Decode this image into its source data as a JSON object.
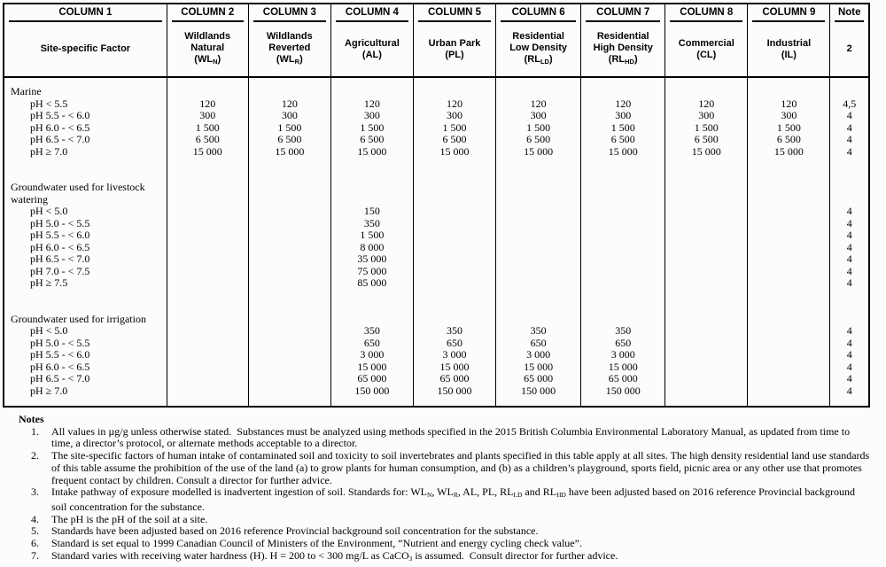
{
  "table": {
    "header_row1": [
      "COLUMN 1",
      "COLUMN 2",
      "COLUMN 3",
      "COLUMN 4",
      "COLUMN 5",
      "COLUMN 6",
      "COLUMN 7",
      "COLUMN 8",
      "COLUMN 9",
      "Note"
    ],
    "header_row2": [
      {
        "lines": [
          "Site-specific Factor"
        ],
        "paren": []
      },
      {
        "lines": [
          "Wildlands",
          "Natural"
        ],
        "paren": [
          {
            "t": "(WL",
            "sub": false
          },
          {
            "t": "N",
            "sub": true
          },
          {
            "t": ")",
            "sub": false
          }
        ]
      },
      {
        "lines": [
          "Wildlands",
          "Reverted"
        ],
        "paren": [
          {
            "t": "(WL",
            "sub": false
          },
          {
            "t": "R",
            "sub": true
          },
          {
            "t": ")",
            "sub": false
          }
        ]
      },
      {
        "lines": [
          "Agricultural",
          "(AL)"
        ],
        "paren": []
      },
      {
        "lines": [
          "Urban Park",
          "(PL)"
        ],
        "paren": []
      },
      {
        "lines": [
          "Residential",
          "Low Density"
        ],
        "paren": [
          {
            "t": "(RL",
            "sub": false
          },
          {
            "t": "LD",
            "sub": true
          },
          {
            "t": ")",
            "sub": false
          }
        ]
      },
      {
        "lines": [
          "Residential",
          "High Density"
        ],
        "paren": [
          {
            "t": "(RL",
            "sub": false
          },
          {
            "t": "HD",
            "sub": true
          },
          {
            "t": ")",
            "sub": false
          }
        ]
      },
      {
        "lines": [
          "Commercial",
          "(CL)"
        ],
        "paren": []
      },
      {
        "lines": [
          "Industrial",
          "(IL)"
        ],
        "paren": []
      },
      {
        "lines": [
          "2"
        ],
        "paren": []
      }
    ],
    "sections": [
      {
        "title_lines": [
          "Marine"
        ],
        "rows": [
          {
            "label": "pH < 5.5",
            "values": [
              "120",
              "120",
              "120",
              "120",
              "120",
              "120",
              "120",
              "120"
            ],
            "note": "4,5"
          },
          {
            "label": "pH 5.5 - < 6.0",
            "values": [
              "300",
              "300",
              "300",
              "300",
              "300",
              "300",
              "300",
              "300"
            ],
            "note": "4"
          },
          {
            "label": "pH 6.0 - < 6.5",
            "values": [
              "1 500",
              "1 500",
              "1 500",
              "1 500",
              "1 500",
              "1 500",
              "1 500",
              "1 500"
            ],
            "note": "4"
          },
          {
            "label": "pH 6.5 - < 7.0",
            "values": [
              "6 500",
              "6 500",
              "6 500",
              "6 500",
              "6 500",
              "6 500",
              "6 500",
              "6 500"
            ],
            "note": "4"
          },
          {
            "label": "pH ≥ 7.0",
            "values": [
              "15 000",
              "15 000",
              "15 000",
              "15 000",
              "15 000",
              "15 000",
              "15 000",
              "15 000"
            ],
            "note": "4"
          }
        ]
      },
      {
        "title_lines": [
          "Groundwater used for livestock",
          "watering"
        ],
        "rows": [
          {
            "label": "pH < 5.0",
            "values": [
              "",
              "",
              "150",
              "",
              "",
              "",
              "",
              ""
            ],
            "note": "4"
          },
          {
            "label": "pH 5.0 - < 5.5",
            "values": [
              "",
              "",
              "350",
              "",
              "",
              "",
              "",
              ""
            ],
            "note": "4"
          },
          {
            "label": "pH 5.5 - < 6.0",
            "values": [
              "",
              "",
              "1 500",
              "",
              "",
              "",
              "",
              ""
            ],
            "note": "4"
          },
          {
            "label": "pH 6.0 - < 6.5",
            "values": [
              "",
              "",
              "8 000",
              "",
              "",
              "",
              "",
              ""
            ],
            "note": "4"
          },
          {
            "label": "pH 6.5 - < 7.0",
            "values": [
              "",
              "",
              "35 000",
              "",
              "",
              "",
              "",
              ""
            ],
            "note": "4"
          },
          {
            "label": "pH 7.0 - < 7.5",
            "values": [
              "",
              "",
              "75 000",
              "",
              "",
              "",
              "",
              ""
            ],
            "note": "4"
          },
          {
            "label": "pH ≥ 7.5",
            "values": [
              "",
              "",
              "85 000",
              "",
              "",
              "",
              "",
              ""
            ],
            "note": "4"
          }
        ]
      },
      {
        "title_lines": [
          "Groundwater used for irrigation"
        ],
        "rows": [
          {
            "label": "pH < 5.0",
            "values": [
              "",
              "",
              "350",
              "350",
              "350",
              "350",
              "",
              ""
            ],
            "note": "4"
          },
          {
            "label": "pH 5.0 - < 5.5",
            "values": [
              "",
              "",
              "650",
              "650",
              "650",
              "650",
              "",
              ""
            ],
            "note": "4"
          },
          {
            "label": "pH 5.5 - < 6.0",
            "values": [
              "",
              "",
              "3 000",
              "3 000",
              "3 000",
              "3 000",
              "",
              ""
            ],
            "note": "4"
          },
          {
            "label": "pH 6.0 - < 6.5",
            "values": [
              "",
              "",
              "15 000",
              "15 000",
              "15 000",
              "15 000",
              "",
              ""
            ],
            "note": "4"
          },
          {
            "label": "pH 6.5 - < 7.0",
            "values": [
              "",
              "",
              "65 000",
              "65 000",
              "65 000",
              "65 000",
              "",
              ""
            ],
            "note": "4"
          },
          {
            "label": "pH ≥ 7.0",
            "values": [
              "",
              "",
              "150 000",
              "150 000",
              "150 000",
              "150 000",
              "",
              ""
            ],
            "note": "4"
          }
        ]
      }
    ]
  },
  "notes": {
    "heading": "Notes",
    "items": [
      {
        "num": "1.",
        "segments": [
          {
            "t": "All values in µg/g unless otherwise stated.  Substances must be analyzed using methods specified in the 2015 British Columbia Environmental Laboratory Manual, as updated from time to time, a director’s protocol, or alternate methods acceptable to a director.",
            "sub": false
          }
        ]
      },
      {
        "num": "2.",
        "segments": [
          {
            "t": "The site-specific factors of human intake of contaminated soil and toxicity to soil invertebrates and plants specified in this table apply at all sites. The high density residential land use standards of this table assume the prohibition of the use of the land (a) to grow plants for human consumption, and (b) as a children’s playground, sports field, picnic area or any other use that promotes frequent contact by children. Consult a director for further advice.",
            "sub": false
          }
        ]
      },
      {
        "num": "3.",
        "segments": [
          {
            "t": "Intake pathway of exposure modelled is inadvertent ingestion of soil. Standards for: WL",
            "sub": false
          },
          {
            "t": "N",
            "sub": true
          },
          {
            "t": ", WL",
            "sub": false
          },
          {
            "t": "R",
            "sub": true
          },
          {
            "t": ", AL, PL, RL",
            "sub": false
          },
          {
            "t": "LD",
            "sub": true
          },
          {
            "t": " and RL",
            "sub": false
          },
          {
            "t": "HD",
            "sub": true
          },
          {
            "t": " have been adjusted based on 2016 reference Provincial background soil concentration for the substance.",
            "sub": false
          }
        ]
      },
      {
        "num": "4.",
        "segments": [
          {
            "t": "The pH is the pH of the soil at a site.",
            "sub": false
          }
        ]
      },
      {
        "num": "5.",
        "segments": [
          {
            "t": "Standards have been adjusted based on 2016 reference Provincial background soil concentration for the substance.",
            "sub": false
          }
        ]
      },
      {
        "num": "6.",
        "segments": [
          {
            "t": "Standard is set equal to 1999 Canadian Council of Ministers of the Environment, “Nutrient and energy cycling check value”.",
            "sub": false
          }
        ]
      },
      {
        "num": "7.",
        "segments": [
          {
            "t": "Standard varies with receiving water hardness (H). H = 200 to < 300 mg/L as CaCO",
            "sub": false
          },
          {
            "t": "3",
            "sub": true
          },
          {
            "t": " is assumed.  Consult director for further advice.",
            "sub": false
          }
        ]
      }
    ]
  }
}
